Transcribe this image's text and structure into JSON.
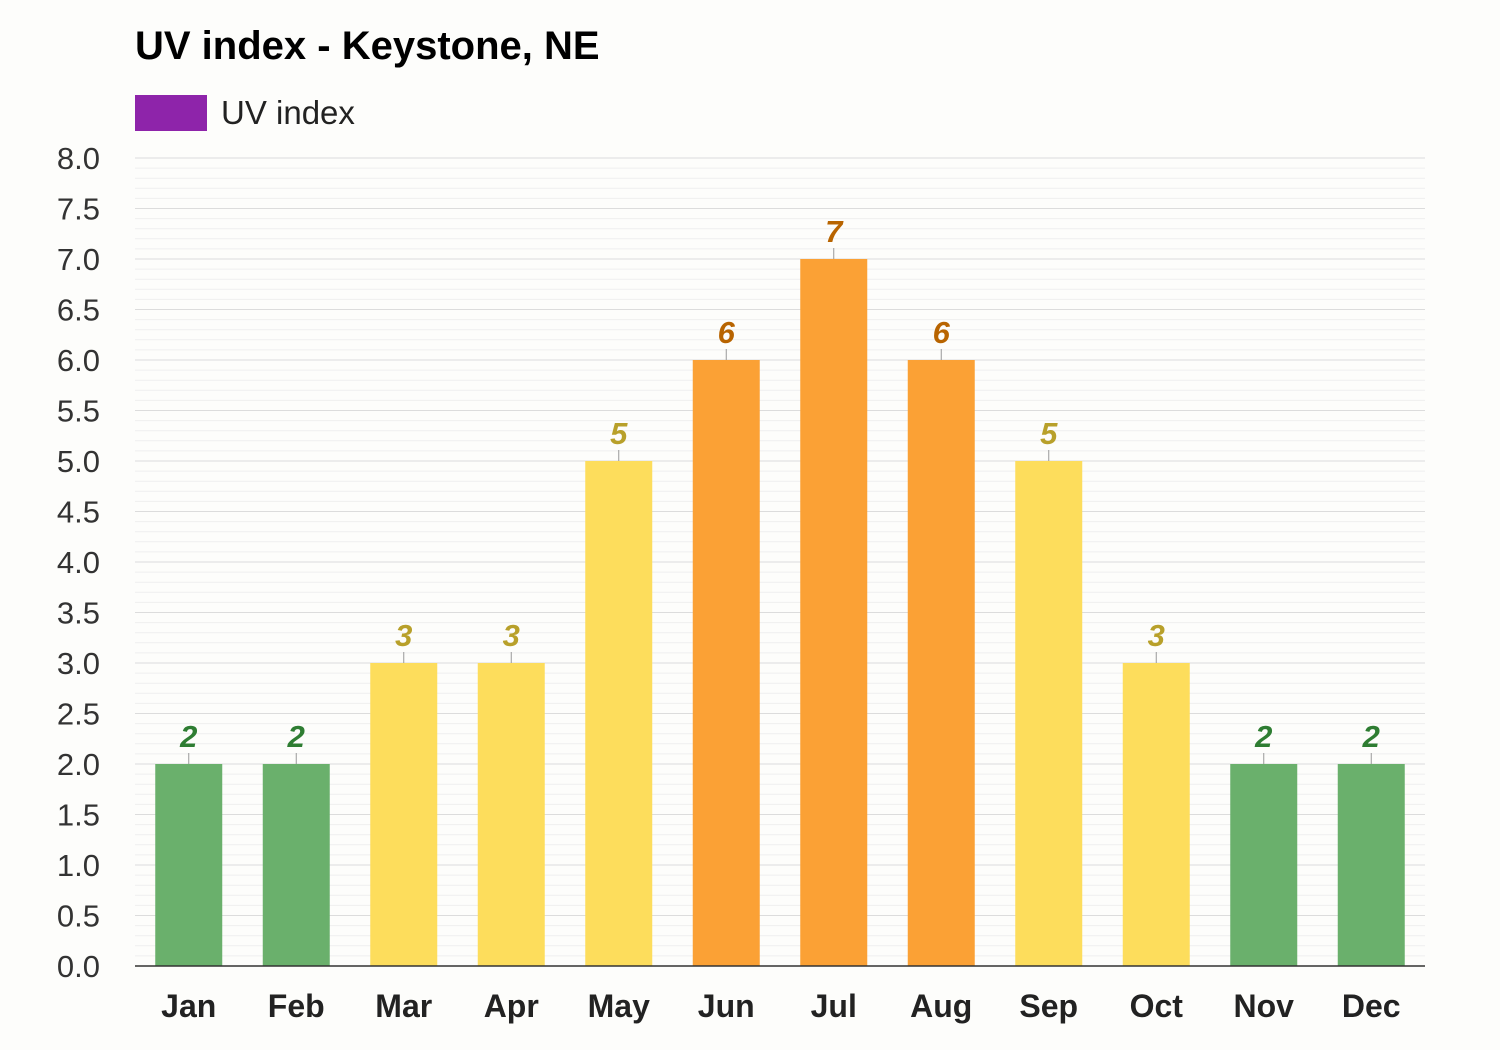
{
  "chart_data": {
    "type": "bar",
    "title": "UV index - Keystone, NE",
    "legend": [
      {
        "label": "UV index",
        "color": "#8e24aa"
      }
    ],
    "legend_position": "top-left",
    "grid": true,
    "categories": [
      "Jan",
      "Feb",
      "Mar",
      "Apr",
      "May",
      "Jun",
      "Jul",
      "Aug",
      "Sep",
      "Oct",
      "Nov",
      "Dec"
    ],
    "series": [
      {
        "name": "UV index",
        "values": [
          2,
          2,
          3,
          3,
          5,
          6,
          7,
          6,
          5,
          3,
          2,
          2
        ]
      }
    ],
    "data_labels": [
      "2",
      "2",
      "3",
      "3",
      "5",
      "6",
      "7",
      "6",
      "5",
      "3",
      "2",
      "2"
    ],
    "ylim": [
      0,
      8
    ],
    "yticks": [
      "0.0",
      "0.5",
      "1.0",
      "1.5",
      "2.0",
      "2.5",
      "3.0",
      "3.5",
      "4.0",
      "4.5",
      "5.0",
      "5.5",
      "6.0",
      "6.5",
      "7.0",
      "7.5",
      "8.0"
    ],
    "xlabel": "",
    "ylabel": "",
    "colors": {
      "low": "#6ab06c",
      "moderate": "#fddd5c",
      "high": "#fba135",
      "low_label": "#2e7d32",
      "moderate_label": "#b8a02a",
      "high_label": "#b86400",
      "grid": "#e4e4e4",
      "axis": "#333333"
    }
  }
}
